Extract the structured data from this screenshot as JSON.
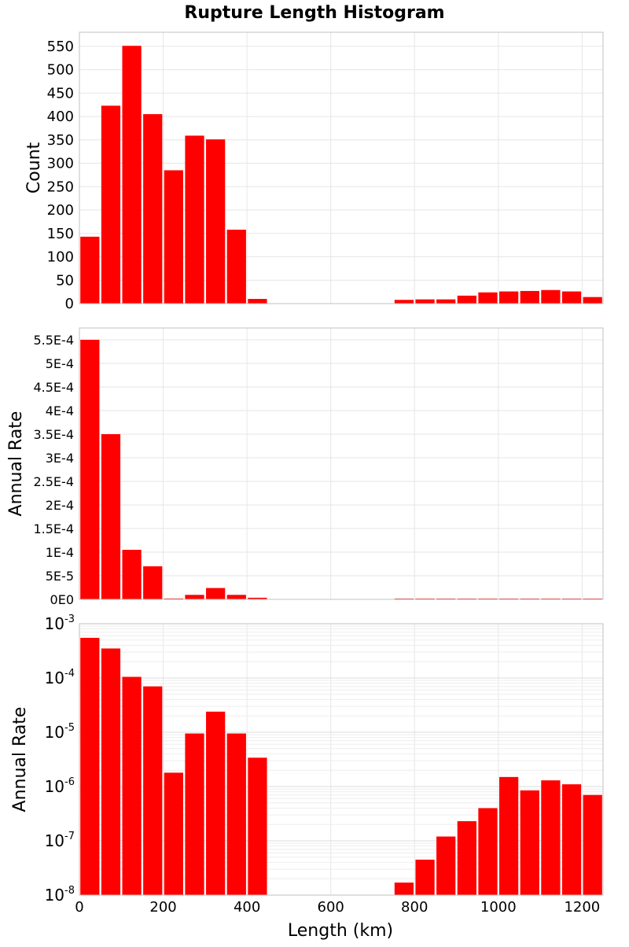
{
  "chart_data": {
    "type": "bar",
    "title": "Rupture Length Histogram",
    "xlabel": "Length (km)",
    "xlim": [
      0,
      1250
    ],
    "bin_width": 50,
    "x": [
      25,
      75,
      125,
      175,
      225,
      275,
      325,
      375,
      425,
      475,
      525,
      575,
      625,
      675,
      725,
      775,
      825,
      875,
      925,
      975,
      1025,
      1075,
      1125,
      1175,
      1225
    ],
    "x_ticks": [
      {
        "value": 0,
        "label": "0"
      },
      {
        "value": 200,
        "label": "200"
      },
      {
        "value": 400,
        "label": "400"
      },
      {
        "value": 600,
        "label": "600"
      },
      {
        "value": 800,
        "label": "800"
      },
      {
        "value": 1000,
        "label": "1000"
      },
      {
        "value": 1200,
        "label": "1200"
      }
    ],
    "colors": {
      "bar": "#ff0000",
      "grid": "#e6e6e6",
      "frame": "#c0c0c0"
    },
    "grid": true,
    "panels": [
      {
        "id": "count",
        "ylabel": "Count",
        "yscale": "linear",
        "ylim": [
          0,
          580
        ],
        "values": [
          143,
          423,
          551,
          405,
          285,
          359,
          351,
          158,
          10,
          0,
          0,
          0,
          0,
          0,
          0,
          8,
          9,
          9,
          17,
          24,
          26,
          27,
          29,
          26,
          14
        ],
        "y_ticks": [
          {
            "value": 0,
            "label": "0"
          },
          {
            "value": 50,
            "label": "50"
          },
          {
            "value": 100,
            "label": "100"
          },
          {
            "value": 150,
            "label": "150"
          },
          {
            "value": 200,
            "label": "200"
          },
          {
            "value": 250,
            "label": "250"
          },
          {
            "value": 300,
            "label": "300"
          },
          {
            "value": 350,
            "label": "350"
          },
          {
            "value": 400,
            "label": "400"
          },
          {
            "value": 450,
            "label": "450"
          },
          {
            "value": 500,
            "label": "500"
          },
          {
            "value": 550,
            "label": "550"
          }
        ]
      },
      {
        "id": "rate-linear",
        "ylabel": "Annual Rate",
        "yscale": "linear",
        "ylim": [
          0,
          0.000575
        ],
        "values": [
          0.00055,
          0.00035,
          0.000105,
          7e-05,
          1.8e-06,
          9.5e-06,
          2.4e-05,
          9.5e-06,
          3.4e-06,
          0,
          0,
          0,
          0,
          0,
          0,
          1.7e-08,
          4.5e-08,
          1.2e-07,
          2.3e-07,
          4e-07,
          1.5e-06,
          8.5e-07,
          1.3e-06,
          1.1e-06,
          7e-07
        ],
        "y_ticks": [
          {
            "value": 0,
            "label": "0E0"
          },
          {
            "value": 5e-05,
            "label": "5E-5"
          },
          {
            "value": 0.0001,
            "label": "1E-4"
          },
          {
            "value": 0.00015,
            "label": "1.5E-4"
          },
          {
            "value": 0.0002,
            "label": "2E-4"
          },
          {
            "value": 0.00025,
            "label": "2.5E-4"
          },
          {
            "value": 0.0003,
            "label": "3E-4"
          },
          {
            "value": 0.00035,
            "label": "3.5E-4"
          },
          {
            "value": 0.0004,
            "label": "4E-4"
          },
          {
            "value": 0.00045,
            "label": "4.5E-4"
          },
          {
            "value": 0.0005,
            "label": "5E-4"
          },
          {
            "value": 0.00055,
            "label": "5.5E-4"
          }
        ]
      },
      {
        "id": "rate-log",
        "ylabel": "Annual Rate",
        "yscale": "log",
        "ylim": [
          1e-08,
          0.001
        ],
        "values": [
          0.00055,
          0.00035,
          0.000105,
          7e-05,
          1.8e-06,
          9.5e-06,
          2.4e-05,
          9.5e-06,
          3.4e-06,
          0,
          0,
          0,
          0,
          0,
          0,
          1.7e-08,
          4.5e-08,
          1.2e-07,
          2.3e-07,
          4e-07,
          1.5e-06,
          8.5e-07,
          1.3e-06,
          1.1e-06,
          7e-07
        ],
        "y_ticks": [
          {
            "value": 1e-08,
            "base": "10",
            "exp": "-8"
          },
          {
            "value": 1e-07,
            "base": "10",
            "exp": "-7"
          },
          {
            "value": 1e-06,
            "base": "10",
            "exp": "-6"
          },
          {
            "value": 1e-05,
            "base": "10",
            "exp": "-5"
          },
          {
            "value": 0.0001,
            "base": "10",
            "exp": "-4"
          },
          {
            "value": 0.001,
            "base": "10",
            "exp": "-3"
          }
        ]
      }
    ]
  }
}
